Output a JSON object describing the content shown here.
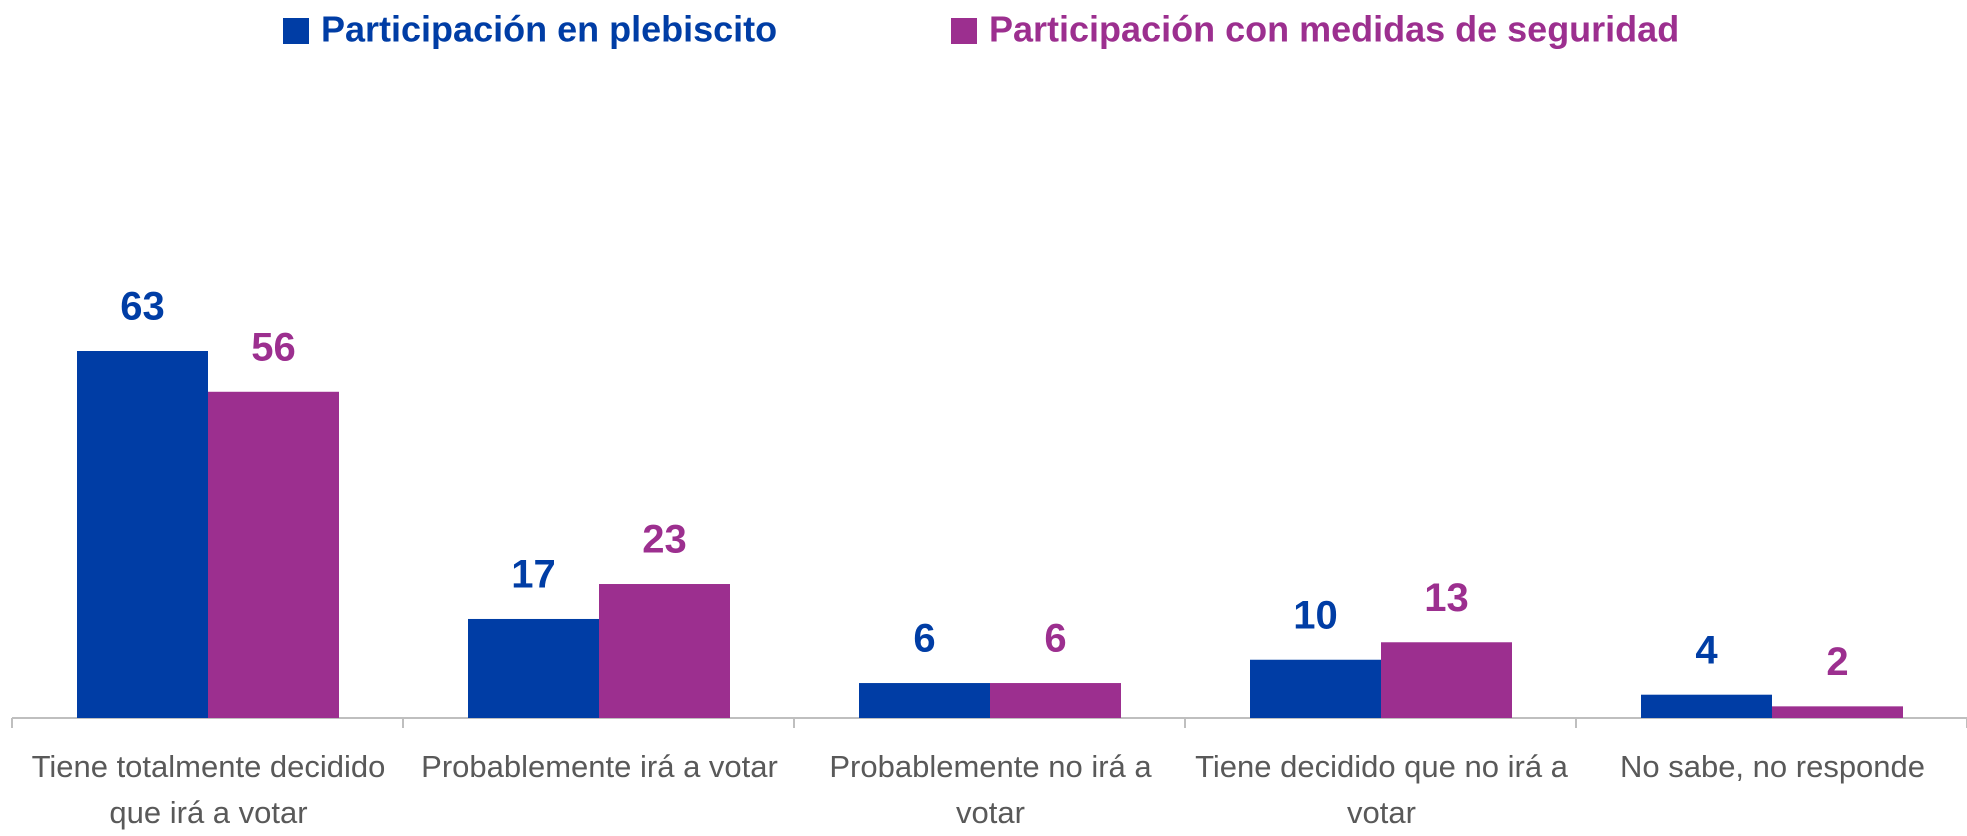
{
  "chart_data": {
    "type": "bar",
    "categories": [
      "Tiene totalmente decidido que irá a votar",
      "Probablemente irá a votar",
      "Probablemente no irá a votar",
      "Tiene decidido que no irá a votar",
      "No sabe, no responde"
    ],
    "series": [
      {
        "name": "Participación en plebiscito",
        "color": "#003da5",
        "values": [
          63,
          17,
          6,
          10,
          4
        ]
      },
      {
        "name": "Participación con medidas de seguridad",
        "color": "#9c2f8f",
        "values": [
          56,
          23,
          6,
          13,
          2
        ]
      }
    ],
    "legend": "top"
  }
}
